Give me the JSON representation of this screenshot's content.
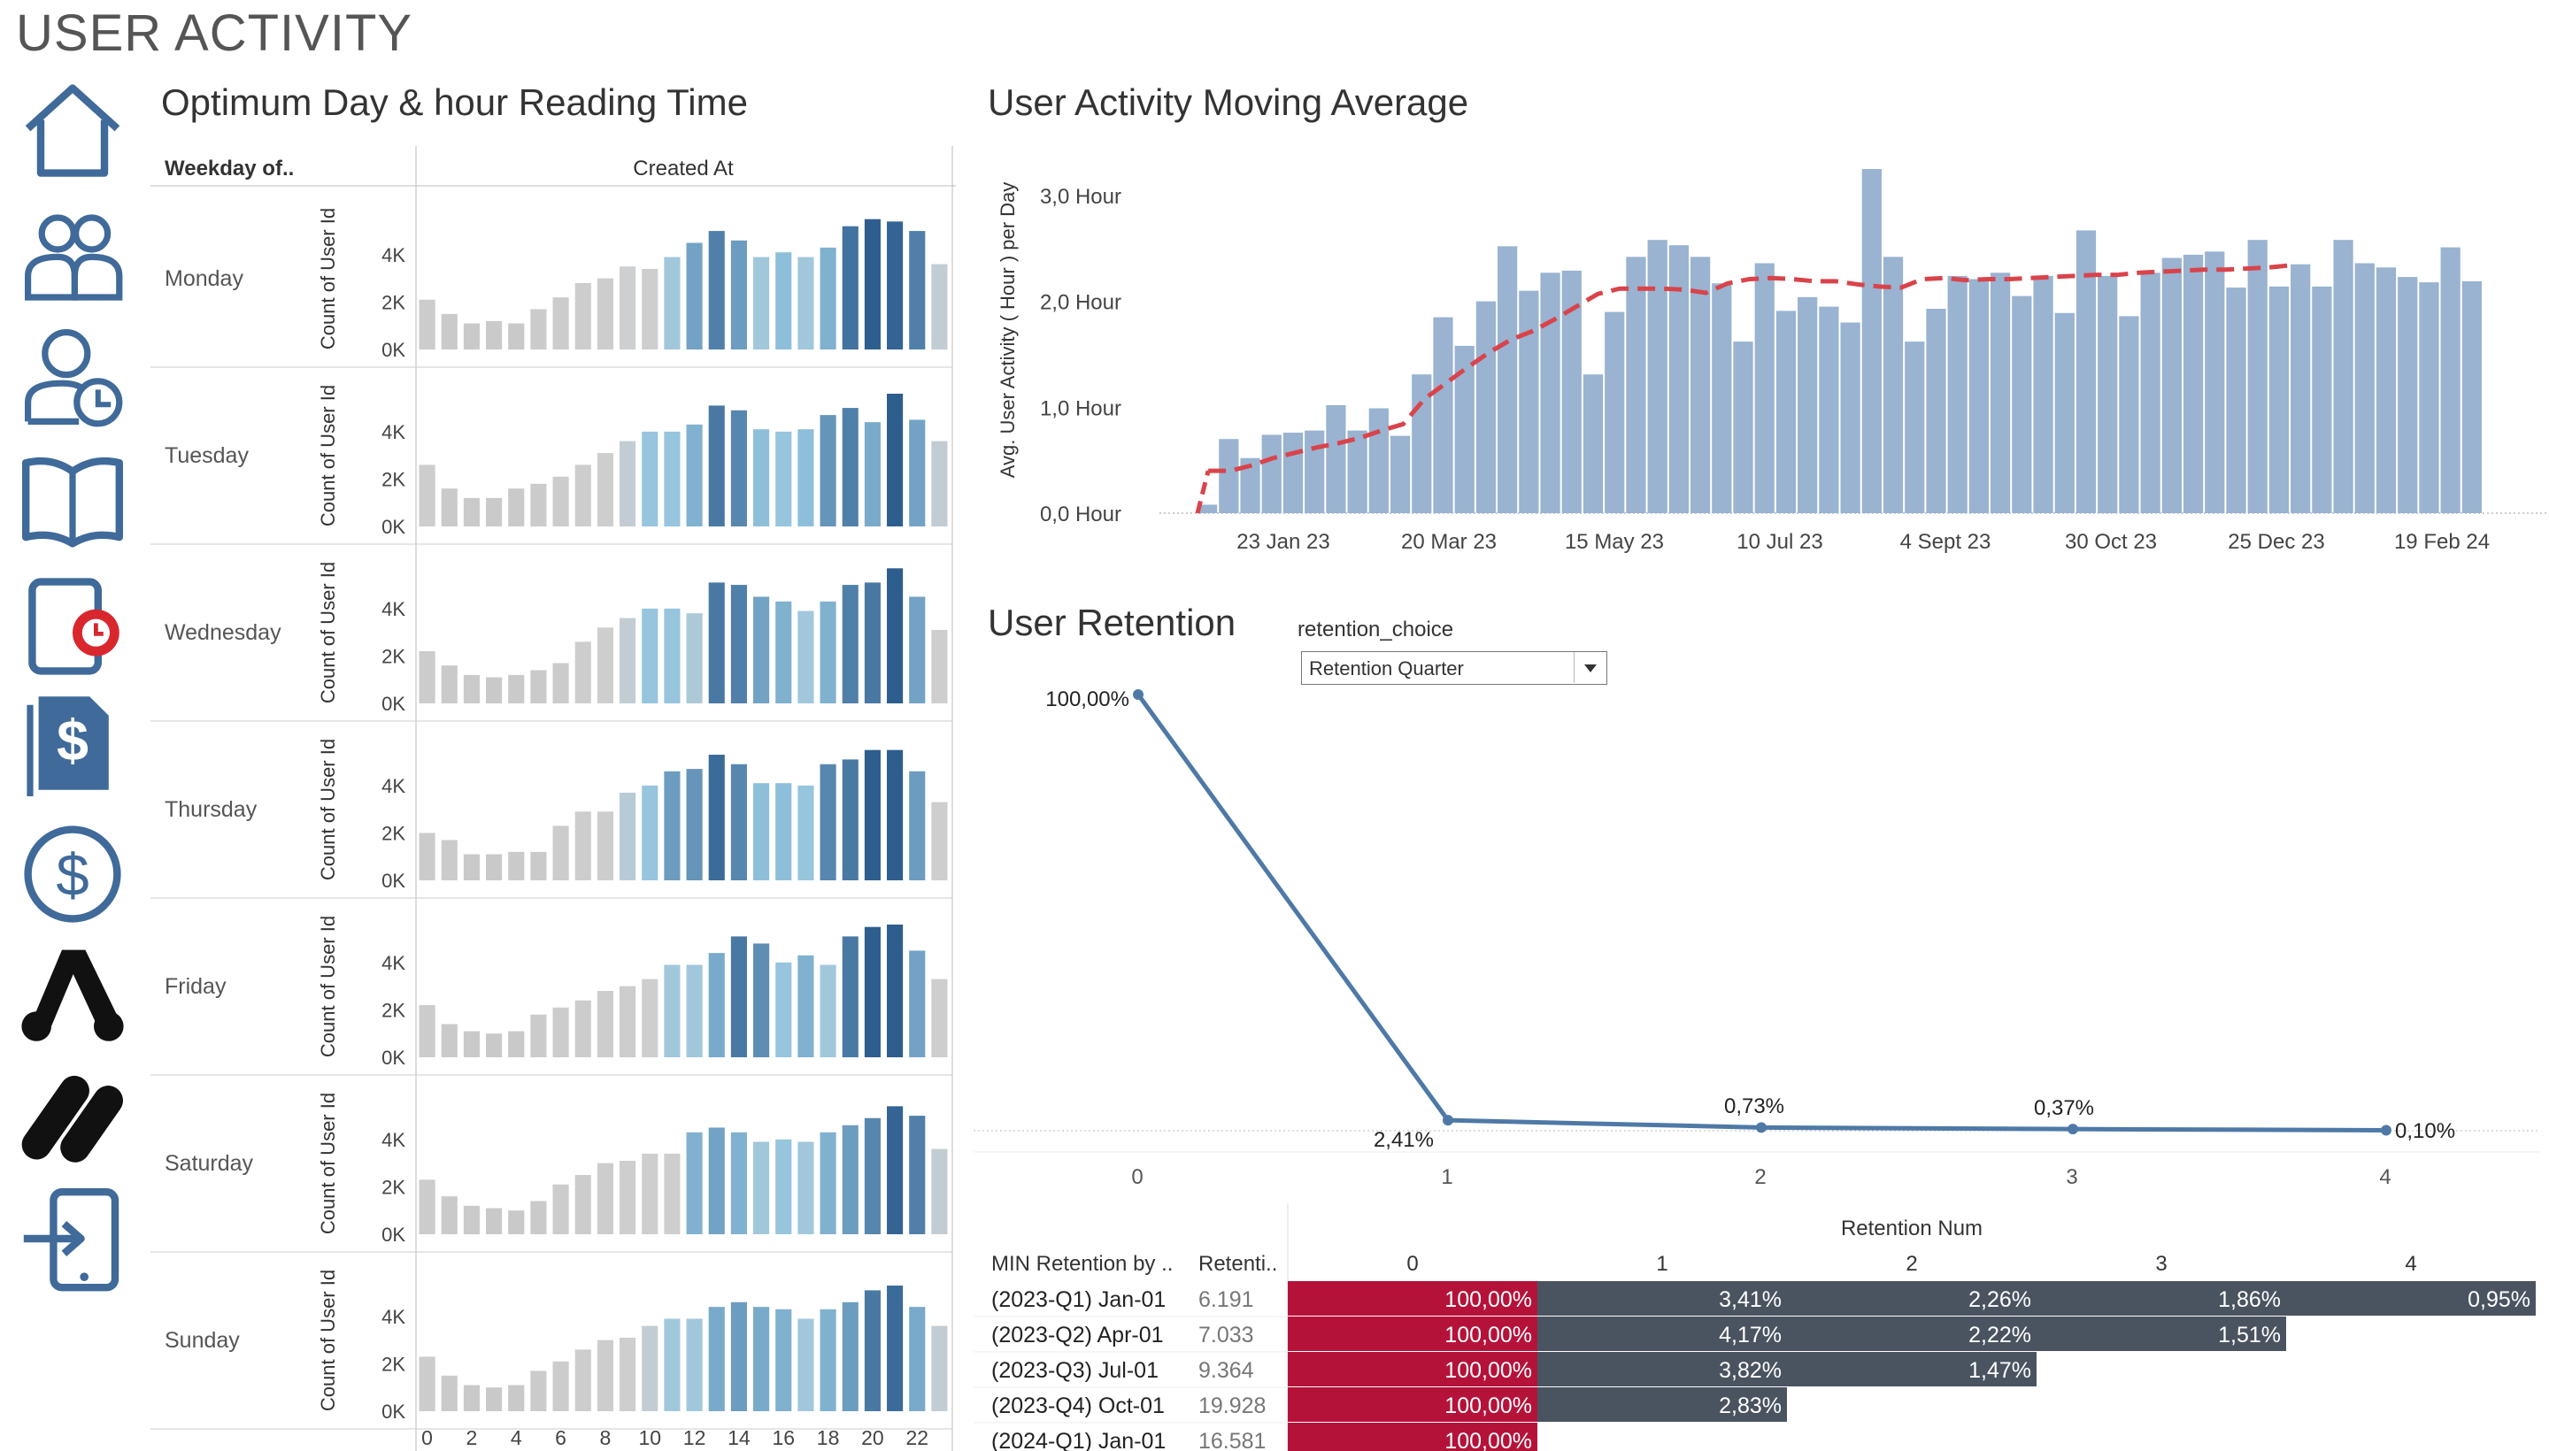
{
  "page_title": "USER ACTIVITY",
  "nav": [
    {
      "icon": "home-icon"
    },
    {
      "icon": "users-icon"
    },
    {
      "icon": "user-clock-icon"
    },
    {
      "icon": "book-icon"
    },
    {
      "icon": "reading-timer-icon"
    },
    {
      "icon": "invoice-dollar-icon"
    },
    {
      "icon": "dollar-circle-icon"
    },
    {
      "icon": "logo-a-icon"
    },
    {
      "icon": "logo-b-icon"
    },
    {
      "icon": "logout-tablet-icon"
    }
  ],
  "heatmap": {
    "title": "Optimum Day & hour Reading Time",
    "row_header": "Weekday of..",
    "col_header": "Created At",
    "y_axis_label": "Count of User Id",
    "y_ticks": [
      "4K",
      "2K",
      "0K"
    ],
    "x_ticks": [
      "0",
      "2",
      "4",
      "6",
      "8",
      "10",
      "12",
      "14",
      "16",
      "18",
      "20",
      "22"
    ],
    "colors": {
      "low": "#c7c7c7",
      "mid": "#93c4de",
      "high": "#2e5e8e"
    },
    "days": [
      {
        "name": "Monday",
        "values": [
          2.1,
          1.5,
          1.1,
          1.2,
          1.1,
          1.7,
          2.2,
          2.8,
          3.0,
          3.5,
          3.4,
          3.9,
          4.5,
          5.0,
          4.6,
          3.9,
          4.1,
          3.9,
          4.3,
          5.2,
          5.5,
          5.4,
          5.0,
          3.6
        ]
      },
      {
        "name": "Tuesday",
        "values": [
          2.6,
          1.6,
          1.2,
          1.2,
          1.6,
          1.8,
          2.1,
          2.6,
          3.1,
          3.6,
          4.0,
          4.0,
          4.3,
          5.1,
          4.9,
          4.1,
          4.0,
          4.1,
          4.7,
          5.0,
          4.4,
          5.6,
          4.5,
          3.6
        ]
      },
      {
        "name": "Wednesday",
        "values": [
          2.2,
          1.6,
          1.2,
          1.1,
          1.2,
          1.4,
          1.7,
          2.6,
          3.2,
          3.6,
          4.0,
          4.0,
          3.8,
          5.1,
          5.0,
          4.5,
          4.3,
          3.9,
          4.3,
          5.0,
          5.1,
          5.7,
          4.5,
          3.1
        ]
      },
      {
        "name": "Thursday",
        "values": [
          2.0,
          1.7,
          1.1,
          1.1,
          1.2,
          1.2,
          2.3,
          2.9,
          2.9,
          3.7,
          4.0,
          4.6,
          4.7,
          5.3,
          4.9,
          4.1,
          4.1,
          4.0,
          4.9,
          5.1,
          5.5,
          5.5,
          4.6,
          3.3
        ]
      },
      {
        "name": "Friday",
        "values": [
          2.2,
          1.4,
          1.1,
          1.0,
          1.1,
          1.8,
          2.1,
          2.4,
          2.8,
          3.0,
          3.3,
          3.9,
          3.9,
          4.4,
          5.1,
          4.8,
          4.0,
          4.3,
          3.9,
          5.1,
          5.5,
          5.6,
          4.5,
          3.3
        ]
      },
      {
        "name": "Saturday",
        "values": [
          2.3,
          1.6,
          1.2,
          1.1,
          1.0,
          1.4,
          2.1,
          2.5,
          3.0,
          3.1,
          3.4,
          3.4,
          4.3,
          4.5,
          4.3,
          3.9,
          4.0,
          3.9,
          4.3,
          4.6,
          4.9,
          5.4,
          5.0,
          3.6
        ]
      },
      {
        "name": "Sunday",
        "values": [
          2.3,
          1.5,
          1.1,
          1.0,
          1.1,
          1.7,
          2.1,
          2.6,
          3.0,
          3.1,
          3.6,
          3.9,
          3.9,
          4.4,
          4.6,
          4.4,
          4.3,
          3.9,
          4.3,
          4.6,
          5.1,
          5.3,
          4.4,
          3.6
        ]
      }
    ]
  },
  "chart_data": [
    {
      "type": "bar",
      "title": "User Activity Moving Average",
      "ylabel": "Avg. User Activity ( Hour ) per Day",
      "y_ticks": [
        "3,0 Hour",
        "2,0 Hour",
        "1,0 Hour",
        "0,0 Hour"
      ],
      "x_ticks": [
        "23 Jan 23",
        "20 Mar 23",
        "15 May 23",
        "10 Jul 23",
        "4 Sept 23",
        "30 Oct 23",
        "25 Dec 23",
        "19 Feb 24"
      ],
      "ylim": [
        0,
        3.3
      ],
      "bar_color": "#99b3d1",
      "line_color": "#d9434a",
      "series": [
        {
          "name": "",
          "values": [
            0.08,
            0.7,
            0.52,
            0.74,
            0.76,
            0.78,
            1.02,
            0.78,
            0.99,
            0.73,
            1.31,
            1.85,
            1.58,
            2.0,
            2.52,
            2.1,
            2.27,
            2.29,
            1.31,
            1.9,
            2.42,
            2.58,
            2.53,
            2.42,
            2.17,
            1.62,
            2.36,
            1.91,
            2.04,
            1.95,
            1.8,
            3.25,
            2.42,
            1.62,
            1.93,
            2.24,
            2.21,
            2.27,
            2.05,
            2.24,
            1.89,
            2.67,
            2.24,
            1.86,
            2.27,
            2.41,
            2.44,
            2.47,
            2.13,
            2.58,
            2.14,
            2.35,
            2.14,
            2.58,
            2.36,
            2.32,
            2.23,
            2.18,
            2.51,
            2.19
          ]
        },
        {
          "name": "",
          "values": [
            0.4,
            0.4,
            0.45,
            0.52,
            0.57,
            0.62,
            0.66,
            0.71,
            0.78,
            0.84,
            1.08,
            1.23,
            1.38,
            1.52,
            1.64,
            1.72,
            1.83,
            1.95,
            2.07,
            2.12,
            2.12,
            2.12,
            2.11,
            2.08,
            2.17,
            2.21,
            2.22,
            2.21,
            2.19,
            2.19,
            2.16,
            2.14,
            2.13,
            2.21,
            2.22,
            2.2,
            2.21,
            2.21,
            2.22,
            2.23,
            2.24,
            2.25,
            2.25,
            2.27,
            2.28,
            2.29,
            2.3,
            2.3,
            2.31,
            2.32,
            2.34
          ]
        }
      ]
    },
    {
      "type": "line",
      "title": "User Retention",
      "x": [
        0,
        1,
        2,
        3,
        4
      ],
      "values": [
        100.0,
        2.41,
        0.73,
        0.37,
        0.1
      ],
      "data_labels": [
        "100,00%",
        "2,41%",
        "0,73%",
        "0,37%",
        "0,10%"
      ],
      "ylim": [
        0,
        100
      ],
      "line_color": "#4e79a7"
    }
  ],
  "retention_filter": {
    "label": "retention_choice",
    "selected": "Retention Quarter"
  },
  "retention_table": {
    "col1_header": "MIN Retention by ..",
    "col2_header": "Retenti..",
    "group_header": "Retention Num",
    "nums": [
      "0",
      "1",
      "2",
      "3",
      "4"
    ],
    "colors": {
      "base": "#b5123a",
      "other": "#4a5461"
    },
    "rows": [
      {
        "cohort": "(2023-Q1) Jan-01",
        "count": "6.191",
        "cells": [
          "100,00%",
          "3,41%",
          "2,26%",
          "1,86%",
          "0,95%"
        ]
      },
      {
        "cohort": "(2023-Q2) Apr-01",
        "count": "7.033",
        "cells": [
          "100,00%",
          "4,17%",
          "2,22%",
          "1,51%"
        ]
      },
      {
        "cohort": "(2023-Q3) Jul-01",
        "count": "9.364",
        "cells": [
          "100,00%",
          "3,82%",
          "1,47%"
        ]
      },
      {
        "cohort": "(2023-Q4) Oct-01",
        "count": "19.928",
        "cells": [
          "100,00%",
          "2,83%"
        ]
      },
      {
        "cohort": "(2024-Q1) Jan-01",
        "count": "16.581",
        "cells": [
          "100,00%"
        ]
      }
    ]
  }
}
